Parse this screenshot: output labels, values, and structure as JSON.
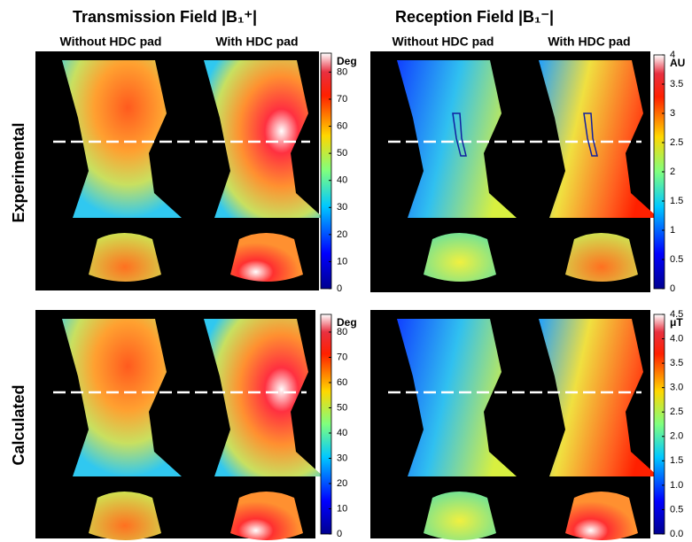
{
  "headers": [
    {
      "title": "Transmission Field",
      "symbol": "|B₁⁺|",
      "subtitles": [
        "Without HDC pad",
        "With HDC pad"
      ]
    },
    {
      "title": "Reception Field",
      "symbol": "|B₁⁻|",
      "subtitles": [
        "Without HDC pad",
        "With HDC pad"
      ]
    }
  ],
  "rows": [
    "Experimental",
    "Calculated"
  ],
  "colorbars": [
    {
      "unit": "Deg",
      "range": [
        0,
        87
      ],
      "ticks": [
        0,
        10,
        20,
        30,
        40,
        50,
        60,
        70,
        80
      ]
    },
    {
      "unit": "AU",
      "range": [
        0,
        4
      ],
      "ticks": [
        0,
        0.5,
        1,
        1.5,
        2,
        2.5,
        3,
        3.5,
        4
      ]
    },
    {
      "unit": "Deg",
      "range": [
        0,
        87
      ],
      "ticks": [
        0,
        10,
        20,
        30,
        40,
        50,
        60,
        70,
        80
      ]
    },
    {
      "unit": "μT",
      "range": [
        0,
        4.5
      ],
      "ticks": [
        {
          "value": 0,
          "label": "0.0"
        },
        0.5,
        {
          "value": 1,
          "label": "1.0"
        },
        1.5,
        {
          "value": 2,
          "label": "2.0"
        },
        2.5,
        {
          "value": 3,
          "label": "3.0"
        },
        3.5,
        {
          "value": 4,
          "label": "4.0"
        },
        4.5
      ]
    }
  ]
}
